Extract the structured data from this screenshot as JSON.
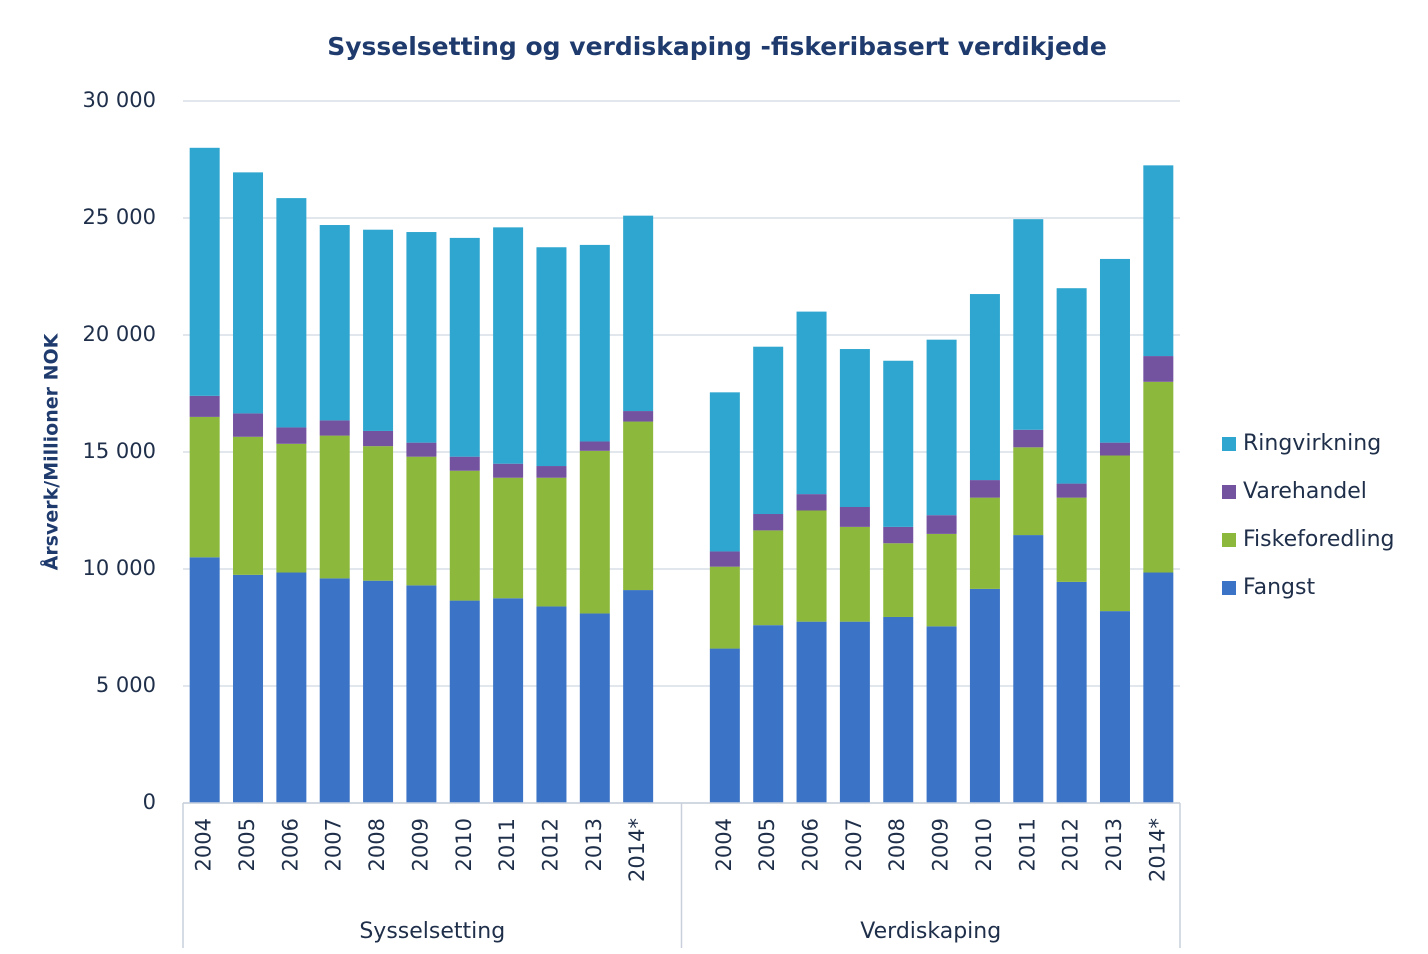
{
  "chart_data": {
    "type": "stacked_bar",
    "title": "Sysselsetting og verdiskaping -fiskeribasert verdikjede",
    "y_label": "Årsverk/Millioner NOK",
    "category_groups": [
      "Sysselsetting",
      "Verdiskaping"
    ],
    "categories": [
      "2004",
      "2005",
      "2006",
      "2007",
      "2008",
      "2009",
      "2010",
      "2011",
      "2012",
      "2013",
      "2014*",
      "2004",
      "2005",
      "2006",
      "2007",
      "2008",
      "2009",
      "2010",
      "2011",
      "2012",
      "2013",
      "2014*"
    ],
    "series": [
      {
        "name": "Fangst",
        "color": "#3b74c6",
        "values": [
          10500,
          9750,
          9850,
          9600,
          9500,
          9300,
          8650,
          8750,
          8400,
          8100,
          9100,
          6600,
          7600,
          7750,
          7750,
          7950,
          7550,
          9150,
          11450,
          9450,
          8200,
          9850
        ]
      },
      {
        "name": "Fiskeforedling",
        "color": "#8cb83c",
        "values": [
          6000,
          5900,
          5500,
          6100,
          5750,
          5500,
          5550,
          5150,
          5500,
          6950,
          7200,
          3500,
          4050,
          4750,
          4050,
          3150,
          3950,
          3900,
          3750,
          3600,
          6650,
          8150
        ]
      },
      {
        "name": "Varehandel",
        "color": "#7352a0",
        "values": [
          900,
          1000,
          700,
          650,
          650,
          600,
          600,
          600,
          500,
          400,
          450,
          650,
          700,
          700,
          850,
          700,
          800,
          750,
          750,
          600,
          550,
          1100
        ]
      },
      {
        "name": "Ringvirkning",
        "color": "#2ea6cf",
        "values": [
          10600,
          10300,
          9800,
          8350,
          8600,
          9000,
          9350,
          10100,
          9350,
          8400,
          8350,
          6800,
          7150,
          7800,
          6750,
          7100,
          7500,
          7950,
          9000,
          8350,
          7850,
          8150
        ]
      }
    ],
    "ylim": [
      0,
      30000
    ],
    "yticks": [
      0,
      {
        "value": 5000,
        "label": "5 000"
      },
      {
        "value": 10000,
        "label": "10 000"
      },
      {
        "value": 15000,
        "label": "15 000"
      },
      {
        "value": 20000,
        "label": "20 000"
      },
      {
        "value": 25000,
        "label": "25 000"
      },
      {
        "value": 30000,
        "label": "30 000"
      }
    ],
    "grid": true,
    "legend": "right"
  }
}
